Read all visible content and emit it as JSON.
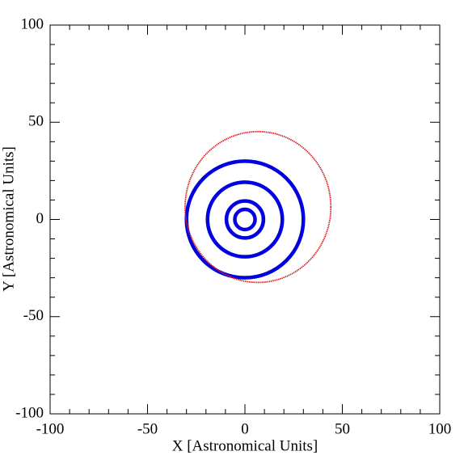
{
  "chart_data": {
    "type": "orbits",
    "xlabel": "X [Astronomical Units]",
    "ylabel": "Y [Astronomical Units]",
    "xlim": [
      -100,
      100
    ],
    "ylim": [
      -100,
      100
    ],
    "xticks": [
      -100,
      -50,
      0,
      50,
      100
    ],
    "yticks": [
      -100,
      -50,
      0,
      50,
      100
    ],
    "xminorticks": [
      -90,
      -80,
      -70,
      -60,
      -40,
      -30,
      -20,
      -10,
      10,
      20,
      30,
      40,
      60,
      70,
      80,
      90
    ],
    "yminorticks": [
      -90,
      -80,
      -70,
      -60,
      -40,
      -30,
      -20,
      -10,
      10,
      20,
      30,
      40,
      60,
      70,
      80,
      90
    ],
    "shapes": [
      {
        "cx": 0,
        "cy": 0,
        "rx": 5.2,
        "ry": 5.2,
        "color": "#0000e0"
      },
      {
        "cx": 0,
        "cy": 0,
        "rx": 9.5,
        "ry": 9.5,
        "color": "#0000e0"
      },
      {
        "cx": 0,
        "cy": 0,
        "rx": 19.2,
        "ry": 19.2,
        "color": "#0000e0"
      },
      {
        "cx": 0,
        "cy": 0,
        "rx": 30,
        "ry": 30,
        "color": "#0000e0"
      },
      {
        "cx": 6.7,
        "cy": 6.4,
        "rx": 37.4,
        "ry": 38.8,
        "color": "#e02020"
      }
    ]
  }
}
